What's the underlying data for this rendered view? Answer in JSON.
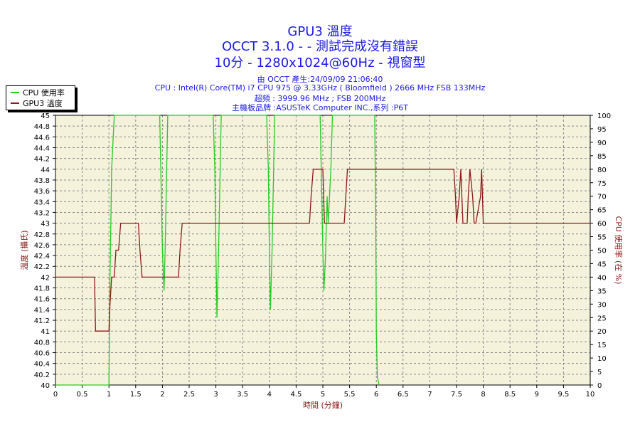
{
  "header": {
    "title1": "GPU3 溫度",
    "title2": "OCCT 3.1.0 -  - 測試完成沒有錯誤",
    "title3": "10分 - 1280x1024@60Hz - 視窗型",
    "info1": "由 OCCT 產生:24/09/09 21:06:40",
    "info2": "CPU : Intel(R) Core(TM) i7 CPU 975 @ 3.33GHz ( Bloomfield ) 2666 MHz FSB 133MHz",
    "info3": "超頻 : 3999.96 MHz ; FSB 200MHz",
    "info4": "主機板品牌 :ASUSTeK Computer INC.,系列 :P6T"
  },
  "colors": {
    "cpu": "#22cc22",
    "gpu": "#8b1a1a",
    "grid": "#888888",
    "plot_bg": "#f5f2dc",
    "title": "#1a1ae6"
  },
  "chart_data": {
    "type": "line",
    "xlabel": "時間 (分鐘)",
    "ylabel_left": "溫度 (攝氏)",
    "ylabel_right": "CPU 使用率 (在 %)",
    "xlim": [
      0,
      10
    ],
    "ylim_left": [
      40,
      45
    ],
    "ylim_right": [
      0,
      100
    ],
    "x_ticks": [
      "0",
      "0.5",
      "1",
      "1.5",
      "2",
      "2.5",
      "3",
      "3.5",
      "4",
      "4.5",
      "5",
      "5.5",
      "6",
      "6.5",
      "7",
      "7.5",
      "8",
      "8.5",
      "9",
      "9.5",
      "10"
    ],
    "y_left_ticks": [
      "40",
      "40.2",
      "40.4",
      "40.6",
      "40.8",
      "41",
      "41.2",
      "41.4",
      "41.6",
      "41.8",
      "42",
      "42.2",
      "42.4",
      "42.6",
      "42.8",
      "43",
      "43.2",
      "43.4",
      "43.6",
      "43.8",
      "44",
      "44.2",
      "44.4",
      "44.6",
      "44.8",
      "45"
    ],
    "y_right_ticks": [
      "0",
      "5",
      "10",
      "15",
      "20",
      "25",
      "30",
      "35",
      "40",
      "45",
      "50",
      "55",
      "60",
      "65",
      "70",
      "75",
      "80",
      "85",
      "90",
      "95",
      "100"
    ],
    "grid": true,
    "legend_position": "top-left",
    "series": [
      {
        "name": "CPU 使用率",
        "axis": "right",
        "x": [
          0,
          1.0,
          1.02,
          1.05,
          1.1,
          1.13,
          1.15,
          1.95,
          1.97,
          2.0,
          2.03,
          2.05,
          2.08,
          2.1,
          2.12,
          2.95,
          2.98,
          3.0,
          3.02,
          3.05,
          3.08,
          3.1,
          3.95,
          3.98,
          4.0,
          4.02,
          4.05,
          4.08,
          4.1,
          4.95,
          4.98,
          5.0,
          5.02,
          5.05,
          5.08,
          5.1,
          5.15,
          5.18,
          5.2,
          5.97,
          5.99,
          6.0,
          6.02,
          6.05
        ],
        "values": [
          0,
          0,
          40,
          80,
          100,
          100,
          100,
          100,
          80,
          50,
          35,
          50,
          80,
          100,
          100,
          100,
          80,
          50,
          25,
          50,
          80,
          100,
          100,
          80,
          50,
          28,
          50,
          80,
          100,
          100,
          70,
          50,
          35,
          48,
          70,
          60,
          80,
          100,
          100,
          100,
          60,
          20,
          3,
          0
        ]
      },
      {
        "name": "GPU3 溫度",
        "axis": "left",
        "x": [
          0,
          0.73,
          0.75,
          1.0,
          1.02,
          1.05,
          1.1,
          1.13,
          1.15,
          1.18,
          1.22,
          1.25,
          1.28,
          1.55,
          1.58,
          1.62,
          2.3,
          2.33,
          2.37,
          4.75,
          4.78,
          4.82,
          5.0,
          5.03,
          5.4,
          5.43,
          5.46,
          7.45,
          7.48,
          7.5,
          7.55,
          7.58,
          7.62,
          7.7,
          7.72,
          7.75,
          7.8,
          7.83,
          7.86,
          7.95,
          7.97,
          8.0,
          10
        ],
        "values": [
          42,
          42,
          41,
          41,
          41.5,
          42,
          42,
          42.5,
          42.5,
          42.5,
          43,
          43,
          43,
          43,
          42.5,
          42,
          42,
          42.5,
          43,
          43,
          43.5,
          44,
          44,
          43,
          43,
          43.5,
          44,
          44,
          43.5,
          43,
          43.5,
          44,
          43,
          43,
          43.5,
          44,
          43.5,
          43,
          43,
          43.5,
          44,
          43,
          43
        ]
      }
    ]
  }
}
